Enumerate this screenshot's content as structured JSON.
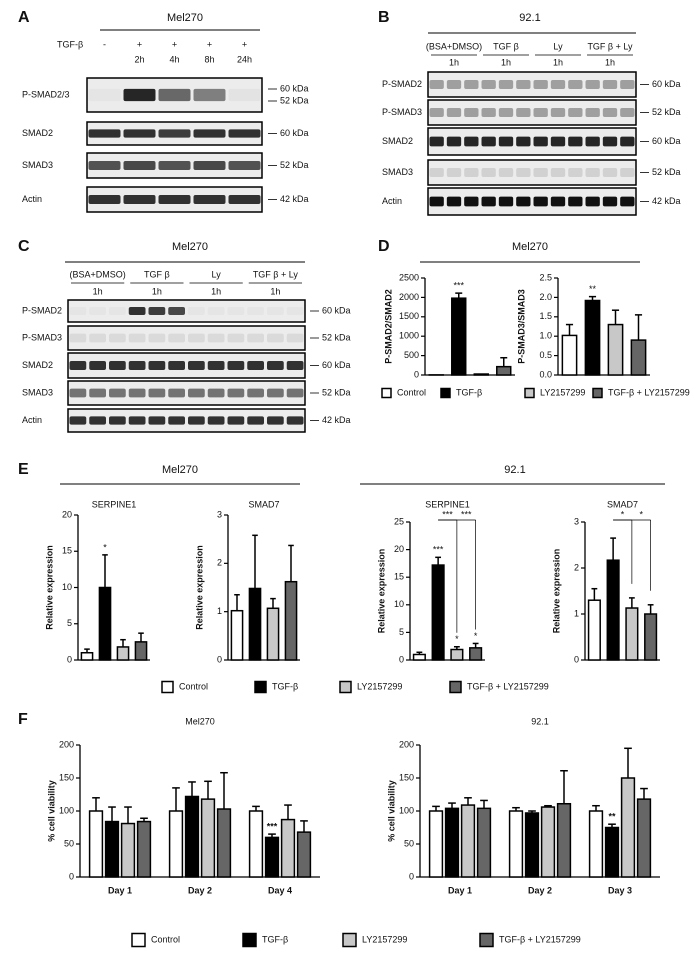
{
  "blots": {
    "A": {
      "label": "A",
      "title": "Mel270",
      "treatment_label": "TGF-β",
      "treatments": [
        "-",
        "+",
        "+",
        "+",
        "+"
      ],
      "times": [
        "2h",
        "4h",
        "8h",
        "24h"
      ],
      "rows": [
        {
          "name": "P-SMAD2/3",
          "sizes": [
            "60 kDa",
            "52 kDa"
          ]
        },
        {
          "name": "SMAD2",
          "sizes": [
            "60 kDa"
          ]
        },
        {
          "name": "SMAD3",
          "sizes": [
            "52 kDa"
          ]
        },
        {
          "name": "Actin",
          "sizes": [
            "42 kDa"
          ]
        }
      ]
    },
    "B": {
      "label": "B",
      "title": "92.1",
      "groups": [
        "(BSA+DMSO)",
        "TGF β",
        "Ly",
        "TGF β + Ly"
      ],
      "times": [
        "1h",
        "1h",
        "1h",
        "1h"
      ],
      "rows": [
        {
          "name": "P-SMAD2",
          "sizes": [
            "60 kDa"
          ]
        },
        {
          "name": "P-SMAD3",
          "sizes": [
            "52 kDa"
          ]
        },
        {
          "name": "SMAD2",
          "sizes": [
            "60 kDa"
          ]
        },
        {
          "name": "SMAD3",
          "sizes": [
            "52 kDa"
          ]
        },
        {
          "name": "Actin",
          "sizes": [
            "42 kDa"
          ]
        }
      ]
    },
    "C": {
      "label": "C",
      "title": "Mel270",
      "groups": [
        "(BSA+DMSO)",
        "TGF β",
        "Ly",
        "TGF β + Ly"
      ],
      "times": [
        "1h",
        "1h",
        "1h",
        "1h"
      ],
      "rows": [
        {
          "name": "P-SMAD2",
          "sizes": [
            "60 kDa"
          ]
        },
        {
          "name": "P-SMAD3",
          "sizes": [
            "52 kDa"
          ]
        },
        {
          "name": "SMAD2",
          "sizes": [
            "60 kDa"
          ]
        },
        {
          "name": "SMAD3",
          "sizes": [
            "52 kDa"
          ]
        },
        {
          "name": "Actin",
          "sizes": [
            "42 kDa"
          ]
        }
      ]
    }
  },
  "chart_panels": {
    "D": {
      "label": "D",
      "title": "Mel270",
      "legend": [
        {
          "name": "Control",
          "color": "#ffffff"
        },
        {
          "name": "TGF-β",
          "color": "#000000"
        },
        {
          "name": "LY2157299",
          "color": "#c8c8c8"
        },
        {
          "name": "TGF-β + LY2157299",
          "color": "#666666"
        }
      ]
    },
    "E": {
      "label": "E",
      "titles": [
        "Mel270",
        "92.1"
      ],
      "legend": [
        {
          "name": "Control",
          "color": "#ffffff"
        },
        {
          "name": "TGF-β",
          "color": "#000000"
        },
        {
          "name": "LY2157299",
          "color": "#c8c8c8"
        },
        {
          "name": "TGF-β + LY2157299",
          "color": "#666666"
        }
      ]
    },
    "F": {
      "label": "F",
      "legend": [
        {
          "name": "Control",
          "color": "#ffffff"
        },
        {
          "name": "TGF-β",
          "color": "#000000"
        },
        {
          "name": "LY2157299",
          "color": "#c8c8c8"
        },
        {
          "name": "TGF-β + LY2157299",
          "color": "#666666"
        }
      ]
    }
  },
  "chart_data": [
    {
      "type": "bar",
      "ylabel": "P-SMAD2/SMAD2",
      "ylim": [
        0,
        2500
      ],
      "yticks": [
        0,
        500,
        1000,
        1500,
        2000,
        2500
      ],
      "values": [
        3,
        1980,
        25,
        215
      ],
      "errors": [
        0,
        130,
        0,
        230
      ],
      "stars": [
        null,
        "***",
        null,
        null
      ]
    },
    {
      "type": "bar",
      "ylabel": "P-SMAD3/SMAD3",
      "ylim": [
        0,
        2.5
      ],
      "yticks": [
        {
          "value": 0,
          "label": "0.0"
        },
        0.5,
        {
          "value": 1,
          "label": "1.0"
        },
        1.5,
        {
          "value": 2,
          "label": "2.0"
        },
        2.5
      ],
      "values": [
        1.02,
        1.92,
        1.3,
        0.9
      ],
      "errors": [
        0.28,
        0.1,
        0.37,
        0.65
      ],
      "stars": [
        null,
        "**",
        null,
        null
      ]
    },
    {
      "type": "bar",
      "title": "SERPINE1",
      "ylabel": "Relative expression",
      "ylim": [
        0,
        20
      ],
      "yticks": [
        0,
        5,
        10,
        15,
        20
      ],
      "values": [
        1.0,
        10,
        1.8,
        2.5
      ],
      "errors": [
        0.5,
        4.5,
        1.0,
        1.2
      ],
      "stars": [
        null,
        "*",
        null,
        null
      ]
    },
    {
      "type": "bar",
      "title": "SMAD7",
      "ylabel": "Relative expression",
      "ylim": [
        0,
        3
      ],
      "yticks": [
        0,
        1,
        2,
        3
      ],
      "values": [
        1.02,
        1.48,
        1.07,
        1.62
      ],
      "errors": [
        0.33,
        1.1,
        0.2,
        0.75
      ]
    },
    {
      "type": "bar",
      "title": "SERPINE1",
      "ylabel": "Relative expression",
      "ylim": [
        0,
        25
      ],
      "yticks": [
        0,
        5,
        10,
        15,
        20,
        25
      ],
      "values": [
        1.0,
        17.2,
        1.9,
        2.2
      ],
      "errors": [
        0.4,
        1.4,
        0.5,
        0.8
      ],
      "stars": [
        null,
        "***",
        "*",
        "*"
      ],
      "vs_tgf_beta_stars": [
        null,
        null,
        "***",
        "***"
      ]
    },
    {
      "type": "bar",
      "title": "SMAD7",
      "ylabel": "Relative expression",
      "ylim": [
        0,
        3
      ],
      "yticks": [
        0,
        1,
        2,
        3
      ],
      "values": [
        1.3,
        2.17,
        1.13,
        1.0
      ],
      "errors": [
        0.25,
        0.48,
        0.22,
        0.2
      ],
      "vs_tgf_beta_stars": [
        null,
        null,
        "*",
        "*"
      ]
    },
    {
      "type": "grouped_bar",
      "title": "Mel270",
      "ylabel": "% cell viability",
      "ylim": [
        0,
        200
      ],
      "yticks": [
        0,
        50,
        100,
        150,
        200
      ],
      "categories": [
        "Day 1",
        "Day 2",
        "Day 4"
      ],
      "series": [
        {
          "values": [
            100,
            100,
            100
          ],
          "errors": [
            20,
            35,
            7
          ]
        },
        {
          "values": [
            84,
            122,
            60
          ],
          "errors": [
            22,
            22,
            5
          ],
          "stars": [
            null,
            null,
            "***"
          ]
        },
        {
          "values": [
            81,
            118,
            87
          ],
          "errors": [
            25,
            27,
            22
          ]
        },
        {
          "values": [
            84,
            103,
            68
          ],
          "errors": [
            5,
            55,
            17
          ]
        }
      ]
    },
    {
      "type": "grouped_bar",
      "title": "92.1",
      "ylabel": "% cell viability",
      "ylim": [
        0,
        200
      ],
      "yticks": [
        0,
        50,
        100,
        150,
        200
      ],
      "categories": [
        "Day 1",
        "Day 2",
        "Day 3"
      ],
      "series": [
        {
          "values": [
            100,
            100,
            100
          ],
          "errors": [
            7,
            5,
            8
          ]
        },
        {
          "values": [
            104,
            97,
            75
          ],
          "errors": [
            8,
            3,
            5
          ],
          "stars": [
            null,
            null,
            "**"
          ]
        },
        {
          "values": [
            109,
            106,
            150
          ],
          "errors": [
            11,
            2,
            45
          ]
        },
        {
          "values": [
            104,
            111,
            118
          ],
          "errors": [
            12,
            50,
            16
          ]
        }
      ]
    }
  ]
}
